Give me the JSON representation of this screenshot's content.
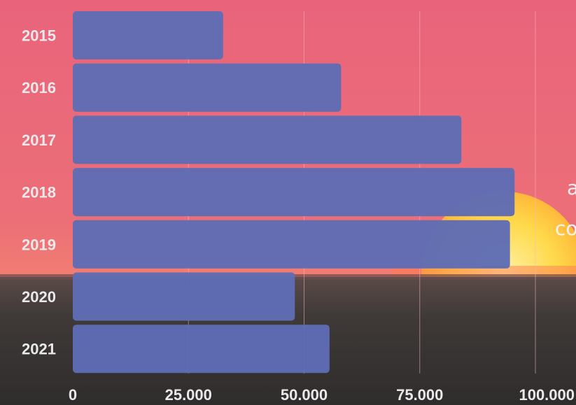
{
  "colors": {
    "bar": "#5f6cb4",
    "sky_top": "#e8627a",
    "sky_mid": "#ee7a74",
    "ground": "#3e3a38",
    "sun": "#ffd84a",
    "gridline": "#f2b8bf",
    "label": "#e9e9ec"
  },
  "side_text": [
    "a",
    "co"
  ],
  "chart_data": {
    "type": "bar",
    "orientation": "horizontal",
    "categories": [
      "2015",
      "2016",
      "2017",
      "2018",
      "2019",
      "2020",
      "2021"
    ],
    "values": [
      32500,
      58000,
      84000,
      95500,
      94500,
      48000,
      55500
    ],
    "xlim": [
      0,
      100000
    ],
    "xticks": [
      0,
      25000,
      50000,
      75000,
      100000
    ],
    "xtick_labels": [
      "0",
      "25.000",
      "50.000",
      "75.000",
      "100.000"
    ],
    "grid": true
  }
}
